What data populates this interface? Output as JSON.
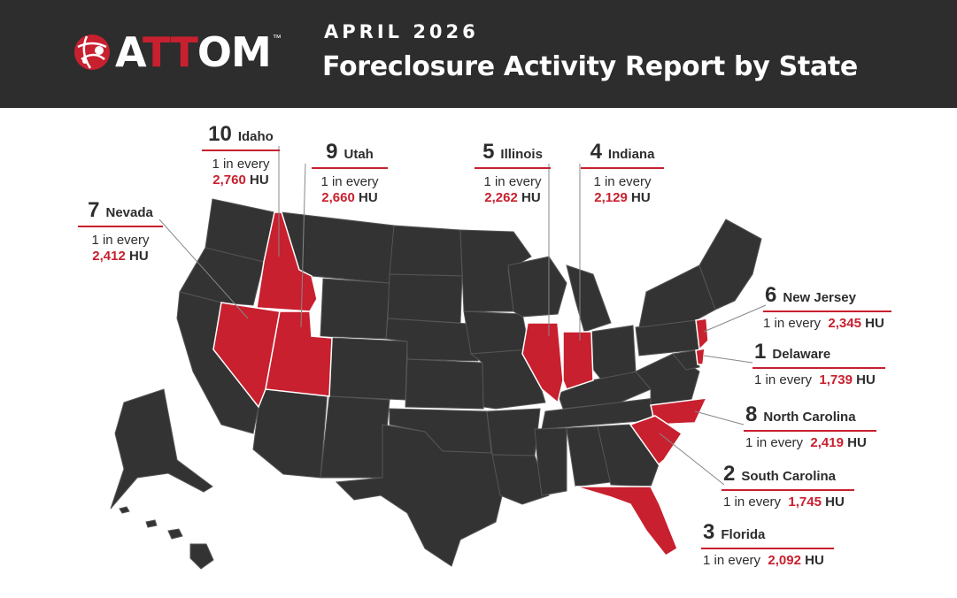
{
  "header": {
    "logo_text_a": "A",
    "logo_text_tt": "TT",
    "logo_text_om": "OM",
    "trademark": "™",
    "date": "APRIL 2026",
    "title": "Foreclosure Activity Report by State"
  },
  "colors": {
    "header_bg": "#2d2d2d",
    "highlight": "#c8202f",
    "state_fill": "#333333"
  },
  "map_data": {
    "highlighted_states": [
      "Idaho",
      "Utah",
      "Nevada",
      "Illinois",
      "Indiana",
      "New Jersey",
      "Delaware",
      "North Carolina",
      "South Carolina",
      "Florida"
    ],
    "rankings": [
      {
        "rank": "10",
        "state": "Idaho",
        "line1": "1 in every",
        "number": "2,760",
        "unit": "HU"
      },
      {
        "rank": "9",
        "state": "Utah",
        "line1": "1 in every",
        "number": "2,660",
        "unit": "HU"
      },
      {
        "rank": "7",
        "state": "Nevada",
        "line1": "1 in every",
        "number": "2,412",
        "unit": "HU"
      },
      {
        "rank": "5",
        "state": "Illinois",
        "line1": "1 in every",
        "number": "2,262",
        "unit": "HU"
      },
      {
        "rank": "4",
        "state": "Indiana",
        "line1": "1 in every",
        "number": "2,129",
        "unit": "HU"
      },
      {
        "rank": "6",
        "state": "New Jersey",
        "line1": "1 in every",
        "number": "2,345",
        "unit": "HU"
      },
      {
        "rank": "1",
        "state": "Delaware",
        "line1": "1 in every",
        "number": "1,739",
        "unit": "HU"
      },
      {
        "rank": "8",
        "state": "North Carolina",
        "line1": "1 in every",
        "number": "2,419",
        "unit": "HU"
      },
      {
        "rank": "2",
        "state": "South Carolina",
        "line1": "1 in every",
        "number": "1,745",
        "unit": "HU"
      },
      {
        "rank": "3",
        "state": "Florida",
        "line1": "1 in every",
        "number": "2,092",
        "unit": "HU"
      }
    ]
  }
}
